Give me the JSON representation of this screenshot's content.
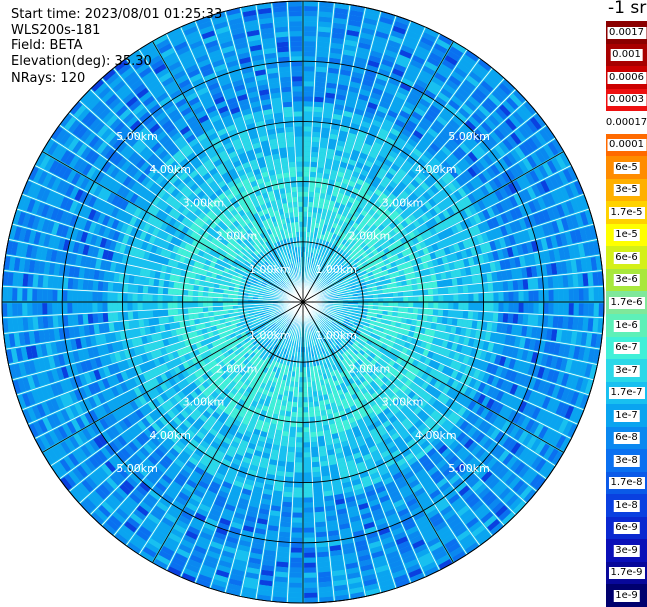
{
  "header": {
    "start_time": "Start time: 2023/08/01 01:25:33",
    "instrument": "WLS200s-181",
    "field": "Field: BETA",
    "elevation": "Elevation(deg): 35.30",
    "nrays": "NRays: 120"
  },
  "colorbar": {
    "unit": "-1 sr",
    "steps": [
      {
        "label": "0.0017",
        "color": "#8b0000"
      },
      {
        "label": "0.001",
        "color": "#a80000"
      },
      {
        "label": "0.0006",
        "color": "#cc0000"
      },
      {
        "label": "0.0003",
        "color": "#ee1010"
      },
      {
        "label": "0.00017",
        "color": "#ffffff"
      },
      {
        "label": "0.0001",
        "color": "#ff6a00"
      },
      {
        "label": "6e-5",
        "color": "#ff8c00"
      },
      {
        "label": "3e-5",
        "color": "#ffb000"
      },
      {
        "label": "1.7e-5",
        "color": "#ffd200"
      },
      {
        "label": "1e-5",
        "color": "#ffff00"
      },
      {
        "label": "6e-6",
        "color": "#d4f018"
      },
      {
        "label": "3e-6",
        "color": "#a8e83c"
      },
      {
        "label": "1.7e-6",
        "color": "#7fe89a"
      },
      {
        "label": "1e-6",
        "color": "#5ef0b8"
      },
      {
        "label": "6e-7",
        "color": "#40f0d8"
      },
      {
        "label": "3e-7",
        "color": "#2ad8e8"
      },
      {
        "label": "1.7e-7",
        "color": "#18c0f0"
      },
      {
        "label": "1e-7",
        "color": "#0aa4f0"
      },
      {
        "label": "6e-8",
        "color": "#0a88f0"
      },
      {
        "label": "3e-8",
        "color": "#0a70f0"
      },
      {
        "label": "1.7e-8",
        "color": "#0a5ae8"
      },
      {
        "label": "1e-8",
        "color": "#0a40e0"
      },
      {
        "label": "6e-9",
        "color": "#0a28d0"
      },
      {
        "label": "3e-9",
        "color": "#0a10b8"
      },
      {
        "label": "1.7e-9",
        "color": "#08089a"
      },
      {
        "label": "1e-9",
        "color": "#00006e"
      }
    ]
  },
  "chart_data": {
    "type": "heatmap",
    "projection": "polar (PPI)",
    "range_rings": [
      {
        "range_km": 1,
        "label": "1.00km"
      },
      {
        "range_km": 2,
        "label": "2.00km"
      },
      {
        "range_km": 3,
        "label": "3.00km"
      },
      {
        "range_km": 4,
        "label": "4.00km"
      },
      {
        "range_km": 5,
        "label": "5.00km"
      }
    ],
    "max_range_km": 5,
    "azimuth_spokes_deg": [
      0,
      30,
      60,
      90,
      120,
      150,
      180,
      210,
      240,
      270,
      300,
      330
    ],
    "n_rays": 120,
    "grid": true,
    "colorscale": "log",
    "field": "BETA"
  }
}
